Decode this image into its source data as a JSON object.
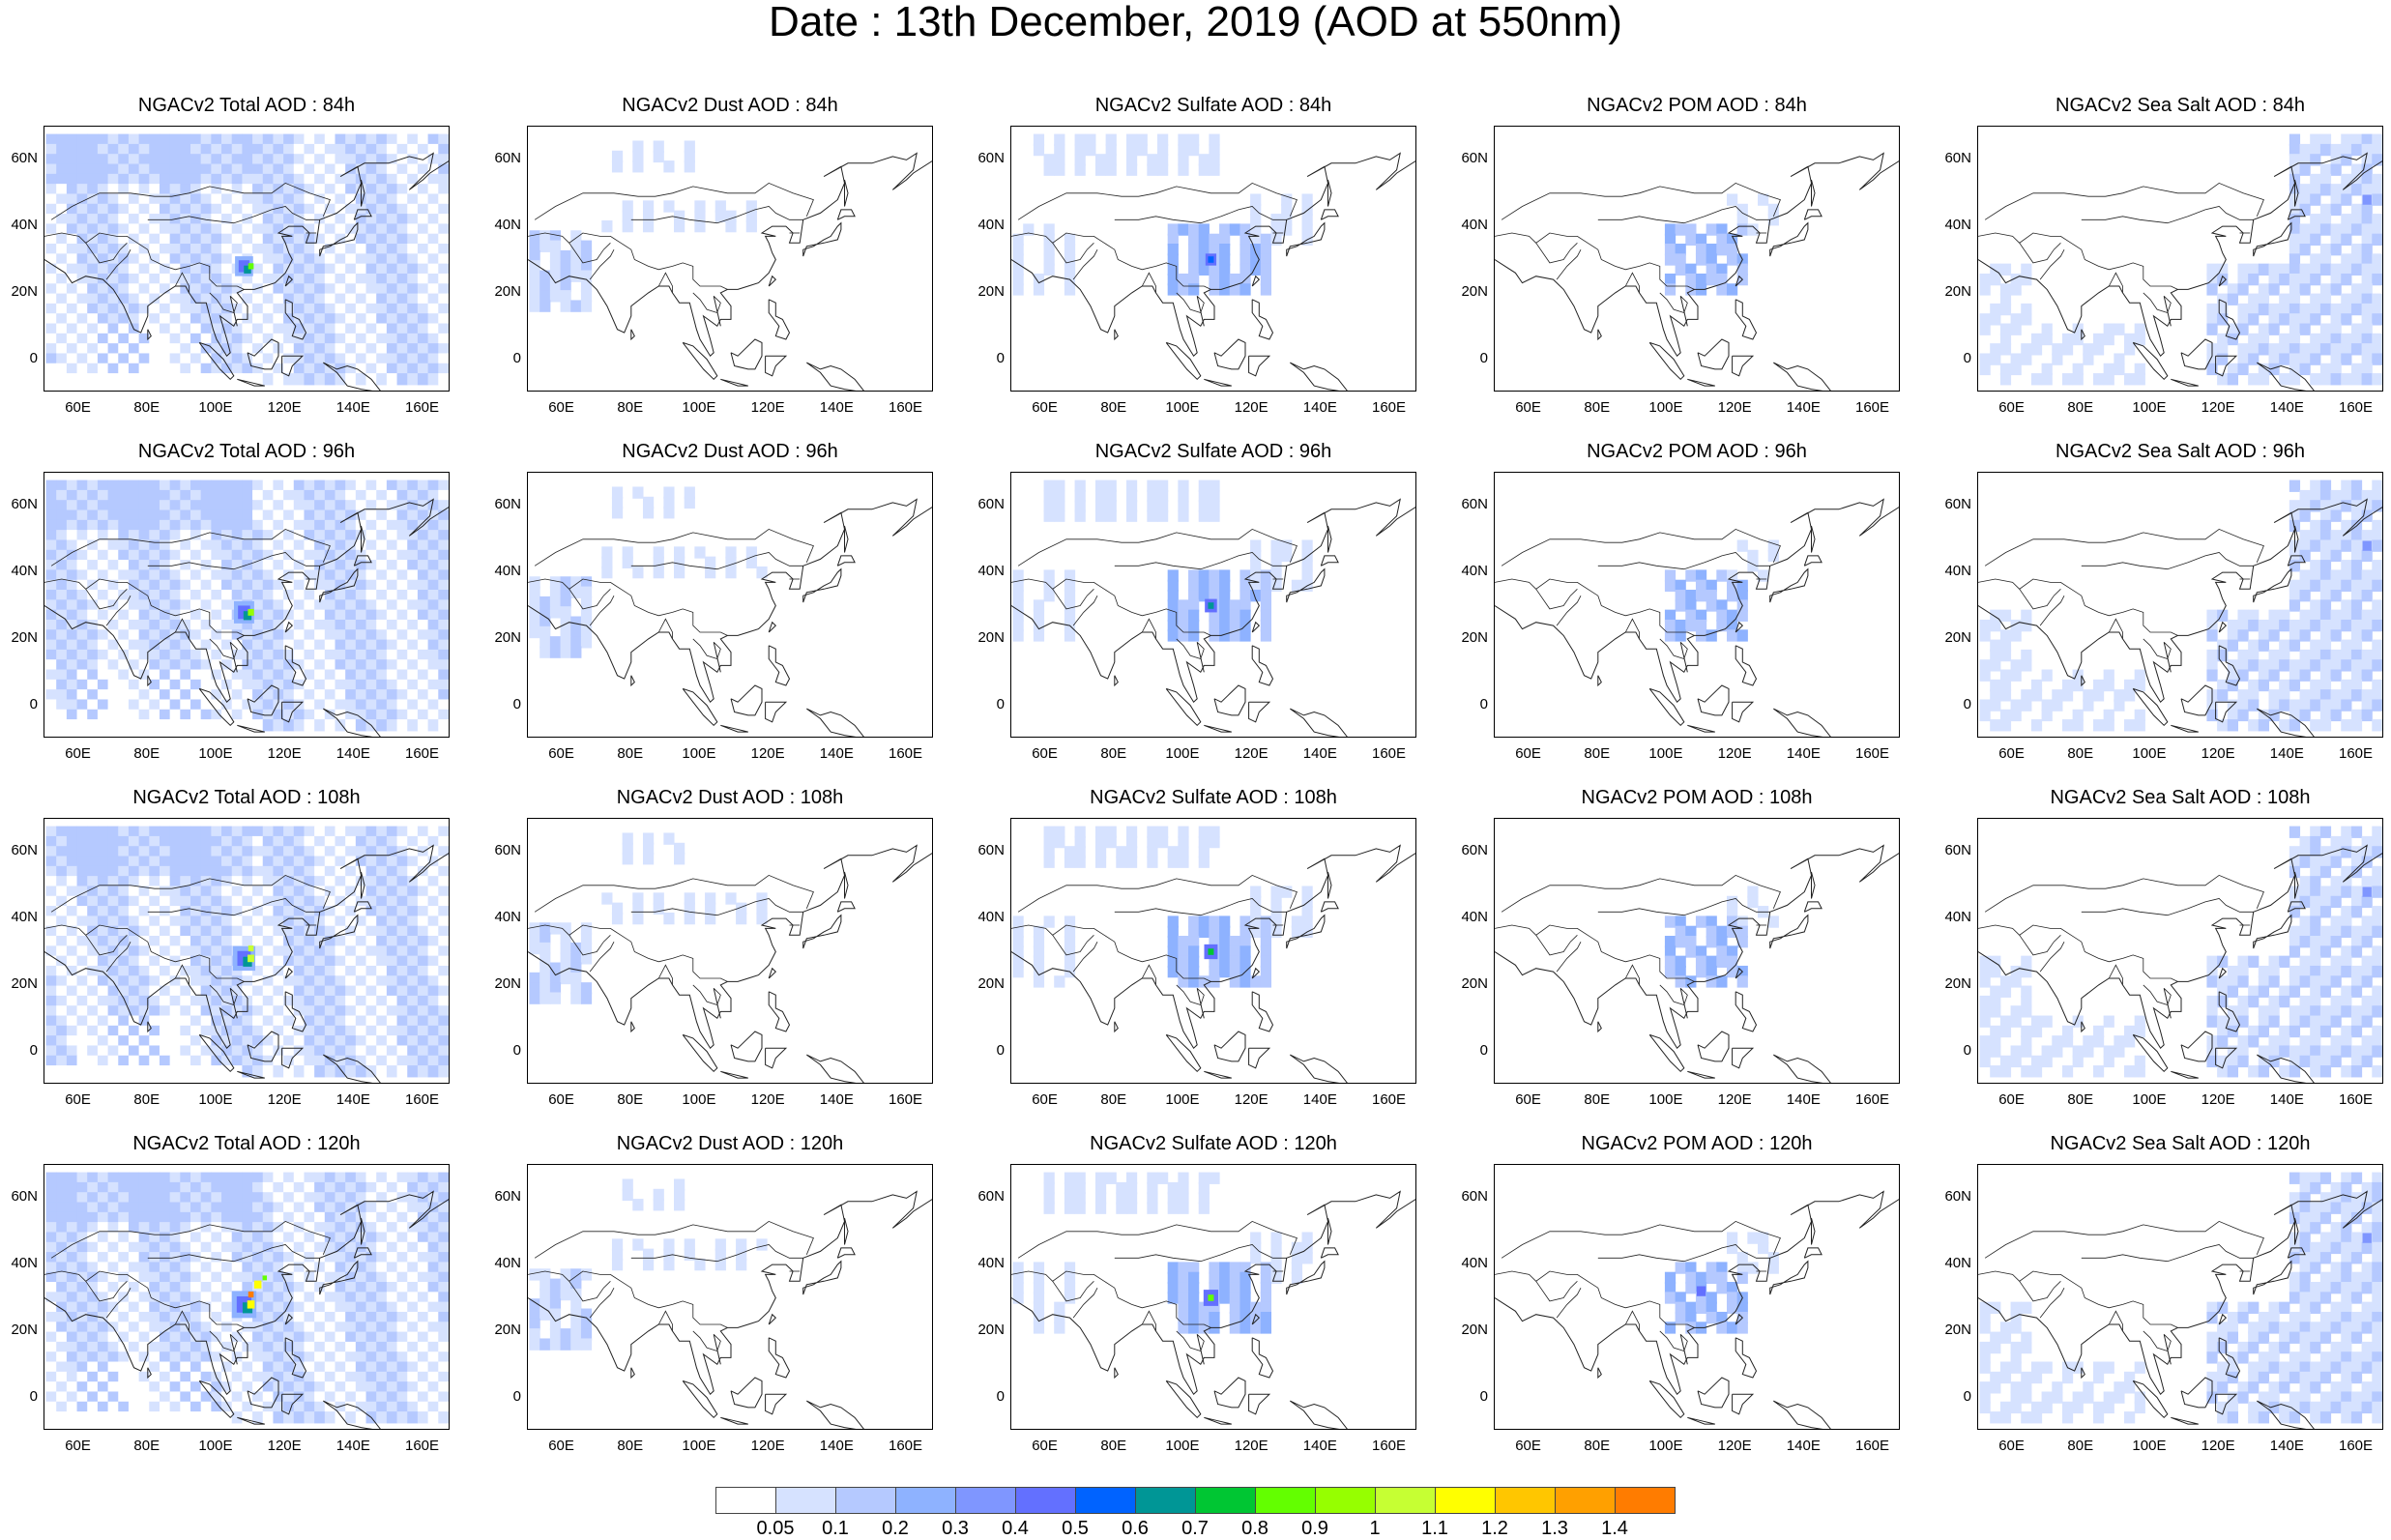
{
  "title": "Date : 13th December, 2019 (AOD at 550nm)",
  "rows": [
    "84h",
    "96h",
    "108h",
    "120h"
  ],
  "panel_titles": [
    [
      "NGACv2 Total AOD : 84h",
      "NGACv2 Dust AOD : 84h",
      "NGACv2 Sulfate AOD : 84h",
      "NGACv2 POM AOD : 84h",
      "NGACv2 Sea Salt AOD : 84h"
    ],
    [
      "NGACv2 Total AOD : 96h",
      "NGACv2 Dust AOD : 96h",
      "NGACv2 Sulfate AOD : 96h",
      "NGACv2 POM AOD : 96h",
      "NGACv2 Sea Salt AOD : 96h"
    ],
    [
      "NGACv2 Total AOD : 108h",
      "NGACv2 Dust AOD : 108h",
      "NGACv2 Sulfate AOD : 108h",
      "NGACv2 POM AOD : 108h",
      "NGACv2 Sea Salt AOD : 108h"
    ],
    [
      "NGACv2 Total AOD : 120h",
      "NGACv2 Dust AOD : 120h",
      "NGACv2 Sulfate AOD : 120h",
      "NGACv2 POM AOD : 120h",
      "NGACv2 Sea Salt  AOD : 120h"
    ]
  ],
  "lat_labels": [
    "60N",
    "40N",
    "20N",
    "0"
  ],
  "lon_labels": [
    "60E",
    "80E",
    "100E",
    "120E",
    "140E",
    "160E"
  ],
  "colorbar": {
    "labels": [
      "0.05",
      "0.1",
      "0.2",
      "0.3",
      "0.4",
      "0.5",
      "0.6",
      "0.7",
      "0.8",
      "0.9",
      "1",
      "1.1",
      "1.2",
      "1.3",
      "1.4"
    ],
    "colors": [
      "#ffffff",
      "#d6e2ff",
      "#b5c9ff",
      "#8eb2ff",
      "#7f96ff",
      "#6370ff",
      "#0063ff",
      "#009696",
      "#00c633",
      "#63ff00",
      "#96ff00",
      "#c6ff33",
      "#ffff00",
      "#ffc600",
      "#ffa000",
      "#ff7c00",
      "#ff1900"
    ]
  }
}
